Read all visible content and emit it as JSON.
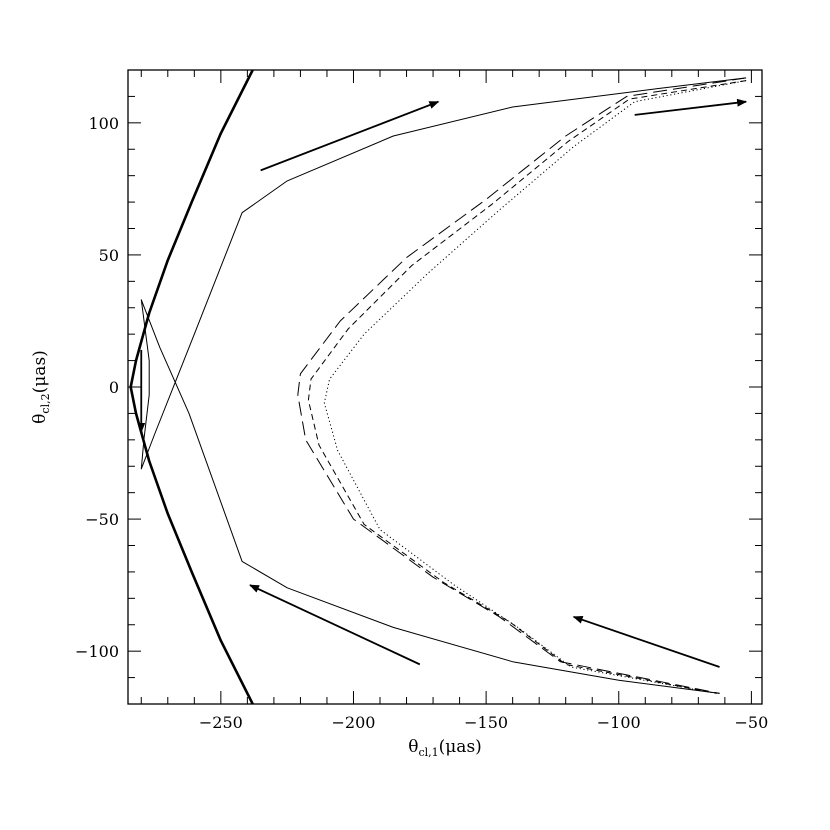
{
  "chart_data": {
    "type": "line",
    "title": "",
    "xlabel": "θcl,1(μas)",
    "xlabel_parts": {
      "symbol": "θ",
      "sub": "cl,1",
      "unit": "(μas)"
    },
    "ylabel": "θcl,2(μas)",
    "ylabel_parts": {
      "symbol": "θ",
      "sub": "cl,2",
      "unit": "(μas)"
    },
    "xlim": [
      -285,
      -46
    ],
    "ylim": [
      -120,
      120
    ],
    "x_major_ticks": [
      -250,
      -200,
      -150,
      -100,
      -50
    ],
    "y_major_ticks": [
      -100,
      -50,
      0,
      50,
      100
    ],
    "x_tick_labels": [
      "−250",
      "−200",
      "−150",
      "−100",
      "−50"
    ],
    "y_tick_labels": [
      "−100",
      "−50",
      "0",
      "50",
      "100"
    ],
    "x_minor_step": 10,
    "y_minor_step": 10,
    "grid": false,
    "legend": "none",
    "series": [
      {
        "style": "thick-solid",
        "points": [
          [
            -238,
            120
          ],
          [
            -250,
            96
          ],
          [
            -261,
            70
          ],
          [
            -270,
            48
          ],
          [
            -277,
            28
          ],
          [
            -282,
            10
          ],
          [
            -284,
            0
          ],
          [
            -282,
            -10
          ],
          [
            -277,
            -28
          ],
          [
            -270,
            -48
          ],
          [
            -261,
            -70
          ],
          [
            -250,
            -96
          ],
          [
            -238,
            -120
          ]
        ]
      },
      {
        "style": "thin-solid",
        "points": [
          [
            -52,
            117
          ],
          [
            -85,
            113
          ],
          [
            -140,
            106
          ],
          [
            -185,
            95
          ],
          [
            -225,
            78
          ],
          [
            -242,
            66
          ],
          [
            -260,
            20
          ],
          [
            -275,
            -18
          ],
          [
            -280,
            -31
          ],
          [
            -279,
            -20
          ],
          [
            -277,
            -3
          ],
          [
            -277,
            10
          ],
          [
            -280,
            33
          ],
          [
            -273,
            15
          ],
          [
            -262,
            -10
          ],
          [
            -242,
            -66
          ],
          [
            -225,
            -76
          ],
          [
            -185,
            -91
          ],
          [
            -140,
            -104
          ],
          [
            -100,
            -111
          ],
          [
            -62,
            -116
          ]
        ]
      },
      {
        "style": "long-dash",
        "points": [
          [
            -52,
            117
          ],
          [
            -97,
            110
          ],
          [
            -120,
            95
          ],
          [
            -150,
            71
          ],
          [
            -180,
            49
          ],
          [
            -205,
            25
          ],
          [
            -220,
            5
          ],
          [
            -221,
            -3
          ],
          [
            -218,
            -20
          ],
          [
            -200,
            -50
          ],
          [
            -170,
            -72
          ],
          [
            -145,
            -87
          ],
          [
            -122,
            -104
          ],
          [
            -62,
            -116
          ]
        ]
      },
      {
        "style": "short-dash",
        "points": [
          [
            -52,
            116
          ],
          [
            -96,
            109
          ],
          [
            -119,
            93
          ],
          [
            -148,
            69
          ],
          [
            -178,
            46
          ],
          [
            -202,
            22
          ],
          [
            -216,
            3
          ],
          [
            -217,
            -5
          ],
          [
            -213,
            -22
          ],
          [
            -196,
            -52
          ],
          [
            -166,
            -74
          ],
          [
            -141,
            -89
          ],
          [
            -120,
            -105
          ],
          [
            -63,
            -116
          ]
        ]
      },
      {
        "style": "dotted",
        "points": [
          [
            -52,
            116
          ],
          [
            -94,
            108
          ],
          [
            -117,
            91
          ],
          [
            -145,
            67
          ],
          [
            -172,
            43
          ],
          [
            -196,
            20
          ],
          [
            -209,
            3
          ],
          [
            -211,
            -6
          ],
          [
            -206,
            -24
          ],
          [
            -190,
            -54
          ],
          [
            -162,
            -75
          ],
          [
            -138,
            -91
          ],
          [
            -118,
            -106
          ],
          [
            -63,
            -116
          ]
        ]
      }
    ],
    "arrows": [
      {
        "from": [
          -235,
          82
        ],
        "to": [
          -168,
          108
        ]
      },
      {
        "from": [
          -94,
          103
        ],
        "to": [
          -52,
          108
        ]
      },
      {
        "from": [
          -280,
          14
        ],
        "to": [
          -280,
          -17
        ]
      },
      {
        "from": [
          -175,
          -105
        ],
        "to": [
          -239,
          -75
        ]
      },
      {
        "from": [
          -62,
          -106
        ],
        "to": [
          -117,
          -87
        ]
      }
    ]
  }
}
